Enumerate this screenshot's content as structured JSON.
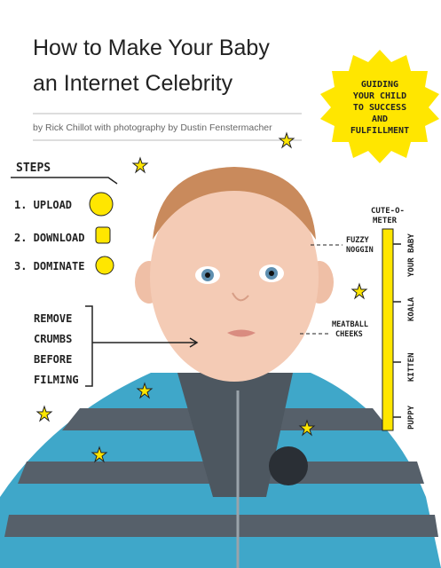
{
  "title": [
    "How to Make Your Baby",
    "an Internet Celebrity"
  ],
  "byline": "by Rick Chillot with photography by Dustin Fenstermacher",
  "badge": [
    "GUIDING",
    "YOUR CHILD",
    "TO SUCCESS",
    "AND",
    "FULFILLMENT"
  ],
  "steps": {
    "heading": "STEPS",
    "items": [
      "1. UPLOAD",
      "2. DOWNLOAD",
      "3. DOMINATE"
    ]
  },
  "note": [
    "REMOVE",
    "CRUMBS",
    "BEFORE",
    "FILMING"
  ],
  "meter": {
    "title": [
      "CUTE-O-",
      "METER"
    ],
    "levels": [
      "YOUR BABY",
      "KOALA",
      "KITTEN",
      "PUPPY"
    ]
  },
  "callouts": [
    [
      "FUZZY",
      "NOGGIN"
    ],
    [
      "MEATBALL",
      "CHEEKS"
    ]
  ]
}
